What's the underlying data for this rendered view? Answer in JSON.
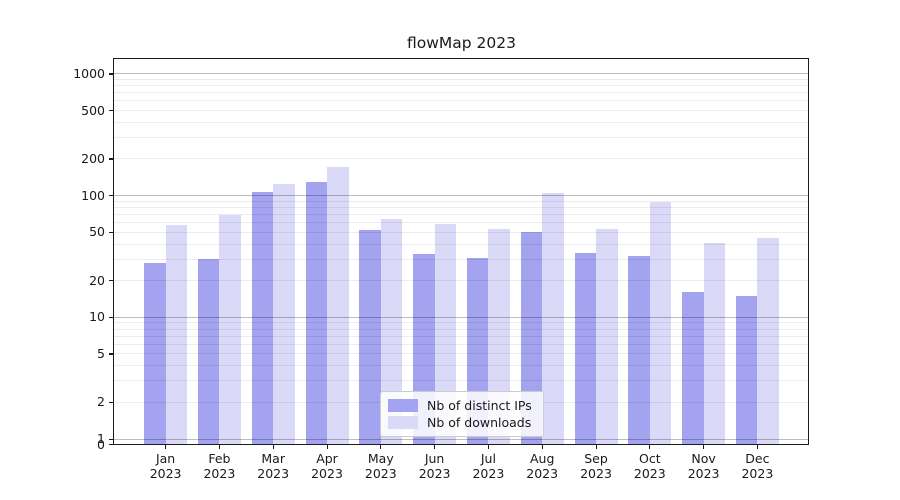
{
  "chart_data": {
    "type": "bar",
    "title": "flowMap 2023",
    "categories_months": [
      "Jan",
      "Feb",
      "Mar",
      "Apr",
      "May",
      "Jun",
      "Jul",
      "Aug",
      "Sep",
      "Oct",
      "Nov",
      "Dec"
    ],
    "categories_year": "2023",
    "series": [
      {
        "name": "Nb of distinct IPs",
        "color": "#a3a3ef",
        "values": [
          28,
          30,
          107,
          130,
          52,
          33,
          31,
          50,
          34,
          32,
          16,
          15
        ]
      },
      {
        "name": "Nb of downloads",
        "color": "#dadaf8",
        "values": [
          57,
          69,
          124,
          173,
          64,
          58,
          53,
          106,
          53,
          89,
          41,
          45
        ]
      }
    ],
    "yscale": "symlog",
    "yticks": [
      0,
      1,
      2,
      5,
      10,
      20,
      50,
      100,
      200,
      500,
      1000
    ],
    "ylim": [
      0,
      1300
    ],
    "xlabel": "",
    "ylabel": "",
    "grid": {
      "major_at": [
        1,
        10,
        100,
        1000
      ],
      "minor_at": "2-9 within each decade"
    },
    "legend_position": "lower center"
  }
}
